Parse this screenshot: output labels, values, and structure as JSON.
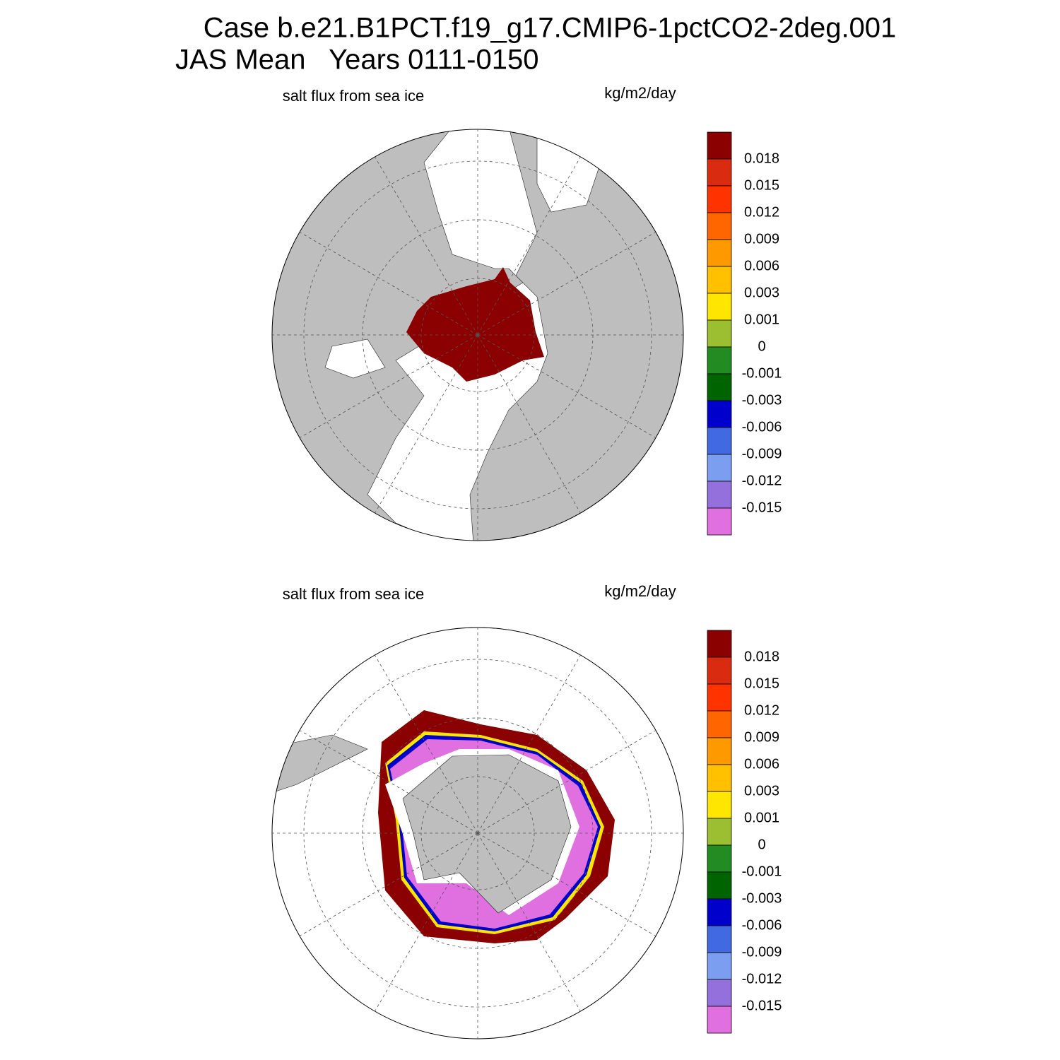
{
  "header": {
    "title": "Case b.e21.B1PCT.f19_g17.CMIP6-1pctCO2-2deg.001",
    "subtitle": "JAS Mean   Years 0111-0150"
  },
  "panels": [
    {
      "title": "salt flux from sea ice",
      "units": "kg/m2/day",
      "colorbar": {
        "colors": [
          "#8b0000",
          "#d92b10",
          "#ff3300",
          "#ff6600",
          "#ff9900",
          "#ffc000",
          "#ffe600",
          "#9bbf30",
          "#228b22",
          "#006400",
          "#0000cd",
          "#4169e1",
          "#7b9ef0",
          "#9370db",
          "#e070e0"
        ],
        "levels": [
          0.018,
          0.015,
          0.012,
          0.009,
          0.006,
          0.003,
          0.001,
          0,
          -0.001,
          -0.003,
          -0.006,
          -0.009,
          -0.012,
          -0.015
        ]
      }
    },
    {
      "title": "salt flux from sea ice",
      "units": "kg/m2/day",
      "colorbar": {
        "colors": [
          "#8b0000",
          "#d92b10",
          "#ff3300",
          "#ff6600",
          "#ff9900",
          "#ffc000",
          "#ffe600",
          "#9bbf30",
          "#228b22",
          "#006400",
          "#0000cd",
          "#4169e1",
          "#7b9ef0",
          "#9370db",
          "#e070e0"
        ],
        "levels": [
          0.018,
          0.015,
          0.012,
          0.009,
          0.006,
          0.003,
          0.001,
          0,
          -0.001,
          -0.003,
          -0.006,
          -0.009,
          -0.012,
          -0.015
        ]
      }
    }
  ]
}
